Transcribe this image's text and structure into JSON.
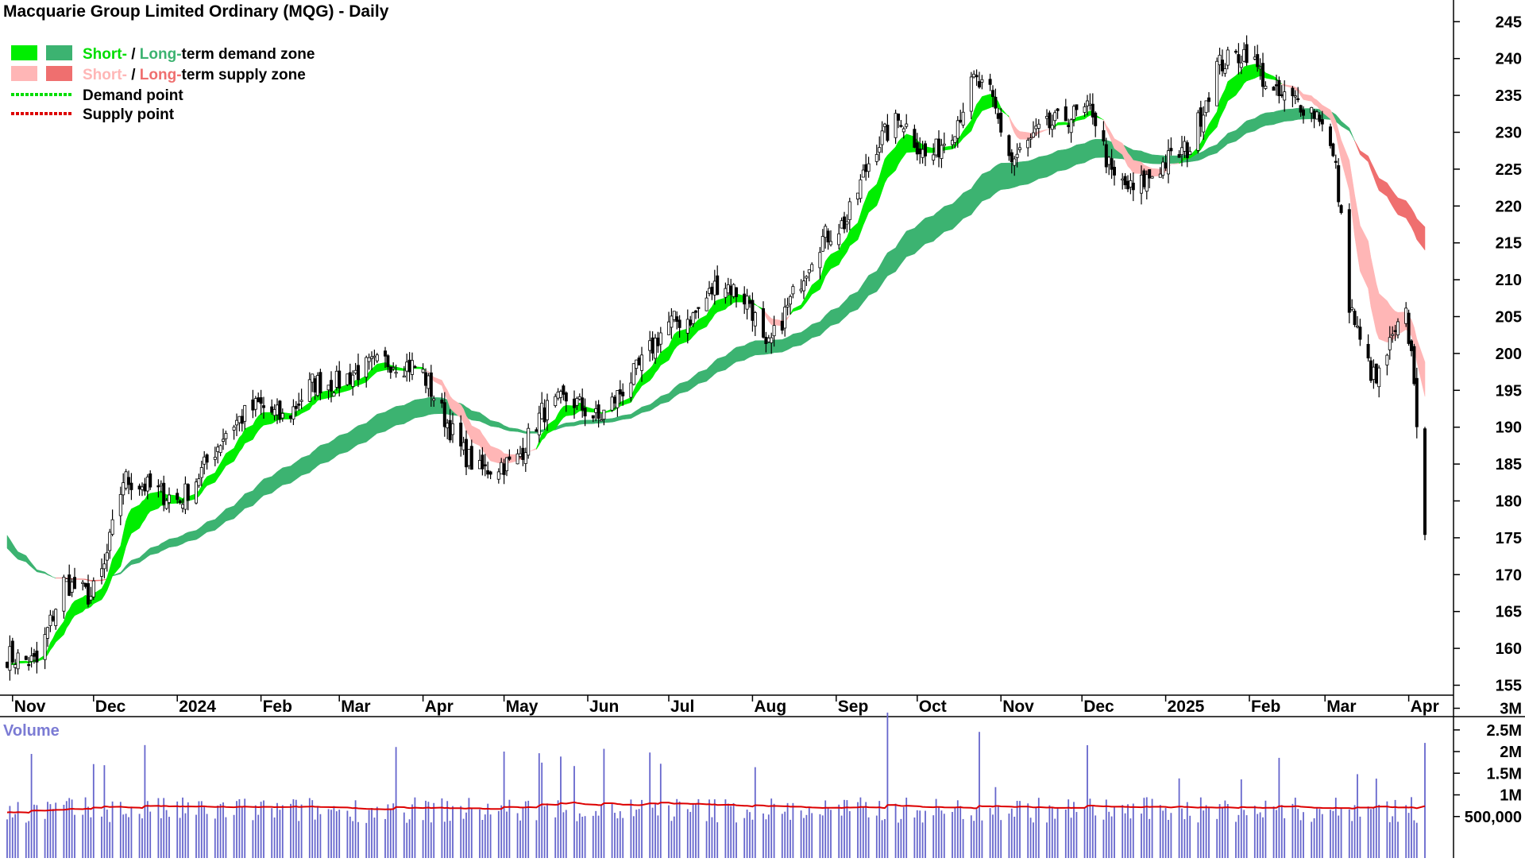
{
  "title": "Macquarie Group Limited Ordinary (MQG) - Daily",
  "legend": {
    "row1": {
      "short": "Short-",
      "sep": " / ",
      "long": "Long-",
      "rest": "term demand zone"
    },
    "row2": {
      "short": "Short-",
      "sep": " / ",
      "long": "Long-",
      "rest": "term supply zone"
    },
    "row3": "Demand point",
    "row4": "Supply point"
  },
  "volume_title": "Volume",
  "colors": {
    "short_demand": "#00ee00",
    "long_demand": "#3cb371",
    "short_supply": "#ffb6b6",
    "long_supply": "#ef6f6f",
    "transition": "#ff6a1a",
    "candle": "#000000",
    "volume_bar": "#6666cc",
    "volume_avg": "#dd0000",
    "volume_title": "#7b7bd4",
    "demand_point": "#00dd00",
    "supply_point": "#dd0000"
  },
  "chart_data": [
    {
      "type": "candlestick",
      "title": "Macquarie Group Limited Ordinary (MQG) - Daily",
      "x_tick_labels": [
        "Nov",
        "Dec",
        "2024",
        "Feb",
        "Mar",
        "Apr",
        "May",
        "Jun",
        "Jul",
        "Aug",
        "Sep",
        "Oct",
        "Nov",
        "Dec",
        "2025",
        "Feb",
        "Mar",
        "Apr"
      ],
      "y_tick_labels": [
        "155",
        "160",
        "165",
        "170",
        "175",
        "180",
        "185",
        "190",
        "195",
        "200",
        "205",
        "210",
        "215",
        "220",
        "225",
        "230",
        "235",
        "240",
        "245"
      ],
      "ylim": [
        152,
        247
      ],
      "legend_position": "top-left",
      "price_path": {
        "dates": [
          "2023-10-30",
          "2023-11-10",
          "2023-11-20",
          "2023-11-30",
          "2023-12-05",
          "2023-12-12",
          "2023-12-20",
          "2024-01-02",
          "2024-01-10",
          "2024-01-20",
          "2024-01-31",
          "2024-02-10",
          "2024-02-20",
          "2024-02-29",
          "2024-03-10",
          "2024-03-20",
          "2024-03-31",
          "2024-04-08",
          "2024-04-15",
          "2024-04-22",
          "2024-04-30",
          "2024-05-05",
          "2024-05-15",
          "2024-05-25",
          "2024-06-05",
          "2024-06-20",
          "2024-06-30",
          "2024-07-10",
          "2024-07-20",
          "2024-07-31",
          "2024-08-06",
          "2024-08-15",
          "2024-08-25",
          "2024-09-05",
          "2024-09-15",
          "2024-09-25",
          "2024-09-30",
          "2024-10-05",
          "2024-10-15",
          "2024-10-22",
          "2024-10-28",
          "2024-11-05",
          "2024-11-15",
          "2024-11-25",
          "2024-12-05",
          "2024-12-12",
          "2024-12-20",
          "2025-01-01",
          "2025-01-10",
          "2025-01-20",
          "2025-01-31",
          "2025-02-10",
          "2025-02-20",
          "2025-02-28",
          "2025-03-05",
          "2025-03-10",
          "2025-03-15",
          "2025-03-20",
          "2025-03-25",
          "2025-03-31",
          "2025-04-03",
          "2025-04-07"
        ],
        "close": [
          159,
          158,
          169,
          167,
          171,
          183,
          182,
          180,
          184,
          190,
          193,
          191,
          196,
          196,
          198,
          199,
          198,
          192,
          187,
          184,
          185,
          185,
          192,
          194,
          191,
          198,
          204,
          205,
          210,
          207,
          200,
          207,
          215,
          218,
          228,
          232,
          229,
          226,
          231,
          237,
          235,
          226,
          230,
          232,
          233,
          224,
          222,
          226,
          228,
          239,
          241,
          235,
          234,
          232,
          225,
          207,
          200,
          196,
          201,
          205,
          197,
          174
        ]
      },
      "demand_zones": {
        "short_term": "green",
        "long_term": "dark green"
      },
      "supply_zones": {
        "short_term": "pink",
        "long_term": "salmon"
      }
    },
    {
      "type": "bar",
      "title": "Volume",
      "y_tick_labels": [
        "500,000",
        "1M",
        "1.5M",
        "2M",
        "2.5M",
        "3M"
      ],
      "ylim": [
        0,
        3000000
      ],
      "average_volume_approx": 600000,
      "notable_peaks": [
        {
          "date": "2024-09-20",
          "value": 2900000
        },
        {
          "date": "2025-04-07",
          "value": 2200000
        },
        {
          "date": "2023-12-20",
          "value": 2150000
        },
        {
          "date": "2024-05-01",
          "value": 2000000
        }
      ]
    }
  ]
}
